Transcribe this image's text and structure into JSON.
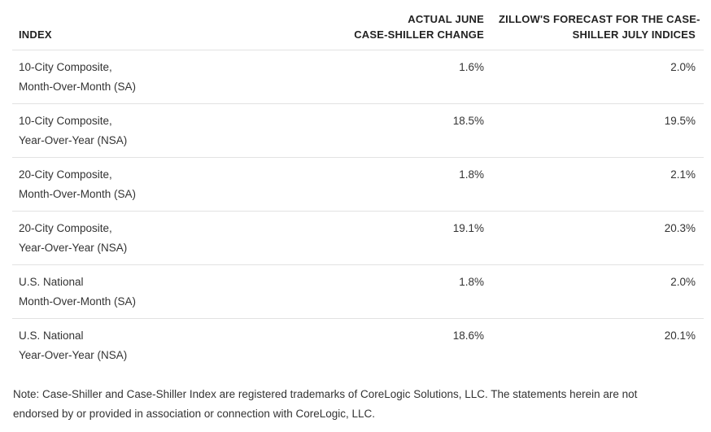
{
  "table": {
    "headers": {
      "index": "INDEX",
      "actual_line1": "ACTUAL JUNE",
      "actual_line2": "CASE-SHILLER CHANGE",
      "forecast_line1": "ZILLOW'S FORECAST FOR THE CASE-",
      "forecast_line2": "SHILLER JULY INDICES"
    },
    "rows": [
      {
        "index_line1": "10-City Composite,",
        "index_line2": "Month-Over-Month (SA)",
        "actual": "1.6%",
        "forecast": "2.0%"
      },
      {
        "index_line1": "10-City Composite,",
        "index_line2": "Year-Over-Year (NSA)",
        "actual": "18.5%",
        "forecast": "19.5%"
      },
      {
        "index_line1": "20-City Composite,",
        "index_line2": "Month-Over-Month (SA)",
        "actual": "1.8%",
        "forecast": "2.1%"
      },
      {
        "index_line1": "20-City Composite,",
        "index_line2": "Year-Over-Year (NSA)",
        "actual": "19.1%",
        "forecast": "20.3%"
      },
      {
        "index_line1": "U.S. National",
        "index_line2": "Month-Over-Month (SA)",
        "actual": "1.8%",
        "forecast": "2.0%"
      },
      {
        "index_line1": "U.S. National",
        "index_line2": "Year-Over-Year (NSA)",
        "actual": "18.6%",
        "forecast": "20.1%"
      }
    ]
  },
  "note": {
    "line1": "Note: Case-Shiller and Case-Shiller Index are registered trademarks of CoreLogic Solutions, LLC. The statements herein are not",
    "line2": "endorsed by or provided in association or connection with CoreLogic, LLC."
  }
}
